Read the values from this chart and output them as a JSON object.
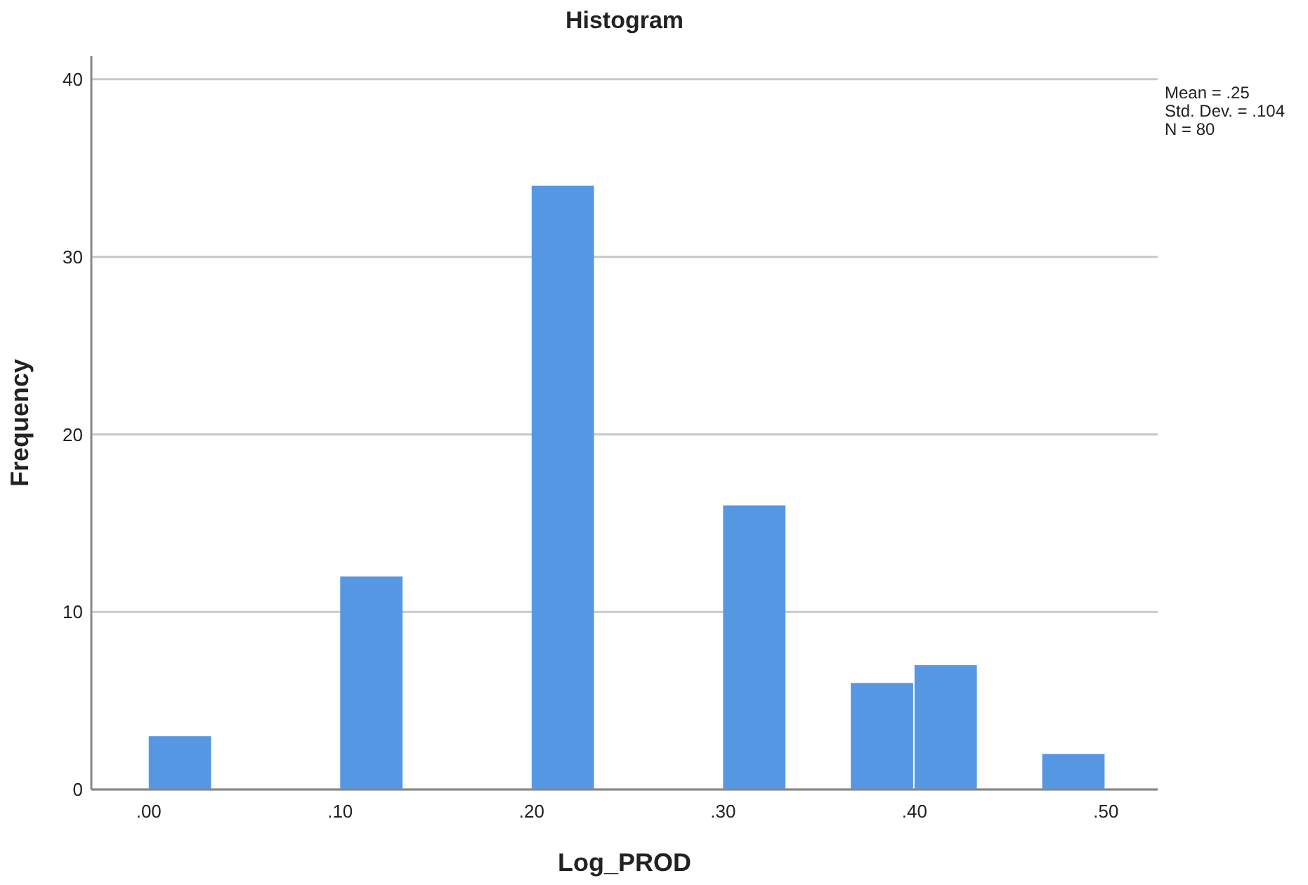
{
  "chart_data": {
    "type": "histogram",
    "title": "Histogram",
    "xlabel": "Log_PROD",
    "ylabel": "Frequency",
    "bins": [
      0,
      0.0333,
      0.0667,
      0.1,
      0.1333,
      0.1667,
      0.2,
      0.2333,
      0.2667,
      0.3,
      0.3333,
      0.3667,
      0.4,
      0.4333,
      0.4667,
      0.5
    ],
    "values": [
      3,
      0,
      0,
      12,
      0,
      0,
      34,
      0,
      0,
      16,
      0,
      6,
      7,
      0,
      2
    ],
    "color": "#5697e3",
    "xlim": [
      -0.03,
      0.527
    ],
    "xticks": [
      {
        "value": 0,
        "label": ".00"
      },
      {
        "value": 0.1,
        "label": ".10"
      },
      {
        "value": 0.2,
        "label": ".20"
      },
      {
        "value": 0.3,
        "label": ".30"
      },
      {
        "value": 0.4,
        "label": ".40"
      },
      {
        "value": 0.5,
        "label": ".50"
      }
    ],
    "ylim": [
      0,
      41.3
    ],
    "yticks": [
      0,
      10,
      20,
      30,
      40
    ],
    "grid": "y",
    "annotations": [
      "Mean = .25",
      "Std. Dev. = .104",
      "N = 80"
    ]
  }
}
